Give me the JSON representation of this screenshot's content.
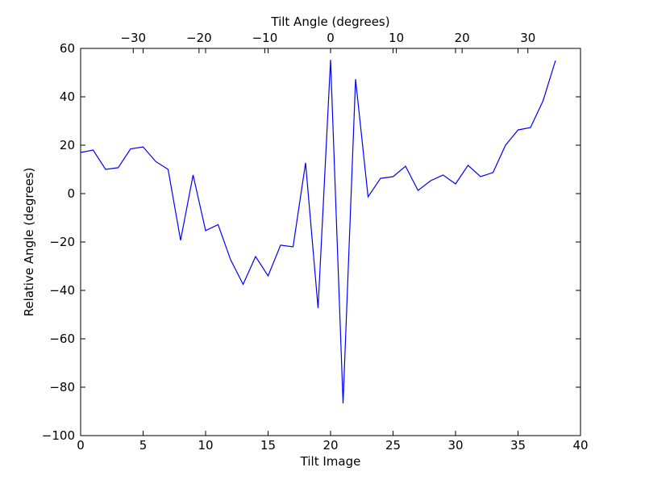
{
  "chart_data": {
    "type": "line",
    "xlabel": "Tilt Image",
    "ylabel": "Relative Angle (degrees)",
    "top_xlabel": "Tilt Angle (degrees)",
    "xlim": [
      0,
      40
    ],
    "ylim": [
      -100,
      60
    ],
    "top_xlim": [
      -38,
      38
    ],
    "grid": false,
    "x_ticks": [
      0,
      5,
      10,
      15,
      20,
      25,
      30,
      35,
      40
    ],
    "y_ticks": [
      -100,
      -80,
      -60,
      -40,
      -20,
      0,
      20,
      40,
      60
    ],
    "top_x_ticks": [
      -30,
      -20,
      -10,
      0,
      10,
      20,
      30
    ],
    "x_tick_labels": [
      "0",
      "5",
      "10",
      "15",
      "20",
      "25",
      "30",
      "35",
      "40"
    ],
    "y_tick_labels": [
      "−100",
      "−80",
      "−60",
      "−40",
      "−20",
      "0",
      "20",
      "40",
      "60"
    ],
    "top_x_tick_labels": [
      "−30",
      "−20",
      "−10",
      "0",
      "10",
      "20",
      "30"
    ],
    "series": [
      {
        "color": "#0000ff",
        "x": [
          0,
          1,
          2,
          3,
          4,
          5,
          6,
          7,
          8,
          9,
          10,
          11,
          12,
          13,
          14,
          15,
          16,
          17,
          18,
          19,
          20,
          21,
          22,
          23,
          24,
          25,
          26,
          27,
          28,
          29,
          30,
          31,
          32,
          33,
          34,
          35,
          36,
          37,
          38
        ],
        "values": [
          17,
          18,
          10,
          10.7,
          18.5,
          19.3,
          13.3,
          10,
          -19.3,
          7.7,
          -15.3,
          -12.8,
          -27.3,
          -37.5,
          -26,
          -34,
          -21.3,
          -22,
          12.7,
          -47.3,
          55.3,
          -86.7,
          47.3,
          -1.3,
          6.3,
          7,
          11.3,
          1.3,
          5.3,
          7.7,
          4,
          11.7,
          7,
          8.7,
          20,
          26.3,
          27.3,
          38.3,
          55
        ]
      }
    ]
  }
}
